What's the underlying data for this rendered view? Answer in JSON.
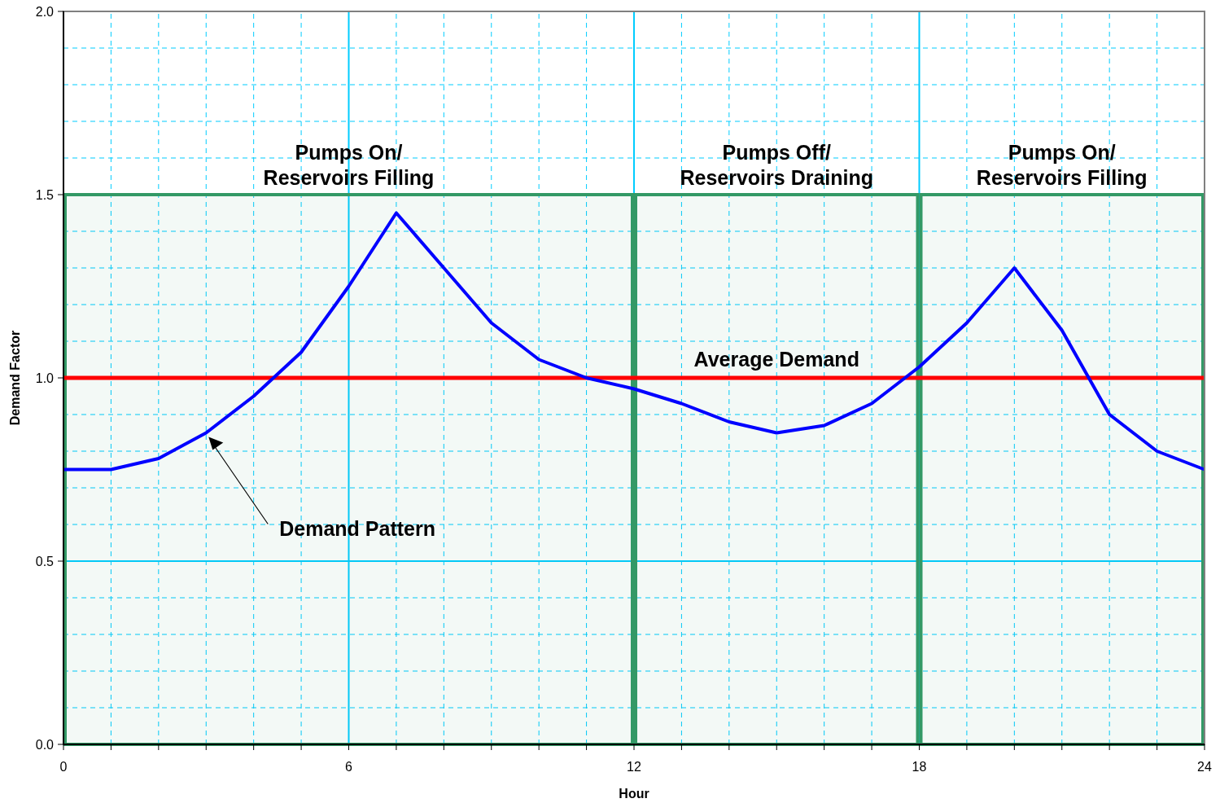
{
  "chart_data": {
    "type": "line",
    "xlabel": "Hour",
    "ylabel": "Demand Factor",
    "x": [
      0,
      1,
      2,
      3,
      4,
      5,
      6,
      7,
      8,
      9,
      10,
      11,
      12,
      13,
      14,
      15,
      16,
      17,
      18,
      19,
      20,
      21,
      22,
      23,
      24
    ],
    "series": [
      {
        "color": "#0000ff",
        "values": [
          0.75,
          0.75,
          0.78,
          0.85,
          0.95,
          1.07,
          1.25,
          1.45,
          1.3,
          1.15,
          1.05,
          1.0,
          0.97,
          0.93,
          0.88,
          0.85,
          0.87,
          0.93,
          1.03,
          1.15,
          1.3,
          1.13,
          0.9,
          0.8,
          0.75
        ]
      }
    ],
    "xlim": [
      0,
      24
    ],
    "xticks": [
      0,
      {
        "value": 1,
        "label": null
      },
      {
        "value": 2,
        "label": null
      },
      {
        "value": 3,
        "label": null
      },
      {
        "value": 4,
        "label": null
      },
      {
        "value": 5,
        "label": null
      },
      6,
      {
        "value": 7,
        "label": null
      },
      {
        "value": 8,
        "label": null
      },
      {
        "value": 9,
        "label": null
      },
      {
        "value": 10,
        "label": null
      },
      {
        "value": 11,
        "label": null
      },
      12,
      {
        "value": 13,
        "label": null
      },
      {
        "value": 14,
        "label": null
      },
      {
        "value": 15,
        "label": null
      },
      {
        "value": 16,
        "label": null
      },
      {
        "value": 17,
        "label": null
      },
      18,
      {
        "value": 19,
        "label": null
      },
      {
        "value": 20,
        "label": null
      },
      {
        "value": 21,
        "label": null
      },
      {
        "value": 22,
        "label": null
      },
      {
        "value": 23,
        "label": null
      },
      24
    ],
    "ylim": [
      0,
      2
    ],
    "yticks": [
      {
        "value": 0,
        "label": "0.0"
      },
      {
        "value": 0.1,
        "label": null
      },
      {
        "value": 0.2,
        "label": null
      },
      {
        "value": 0.3,
        "label": null
      },
      {
        "value": 0.4,
        "label": null
      },
      0.5,
      {
        "value": 0.6,
        "label": null
      },
      {
        "value": 0.7,
        "label": null
      },
      {
        "value": 0.8,
        "label": null
      },
      {
        "value": 0.9,
        "label": null
      },
      {
        "value": 1,
        "label": "1.0"
      },
      {
        "value": 1.1,
        "label": null
      },
      {
        "value": 1.2,
        "label": null
      },
      {
        "value": 1.3,
        "label": null
      },
      {
        "value": 1.4,
        "label": null
      },
      1.5,
      {
        "value": 1.6,
        "label": null
      },
      {
        "value": 1.7,
        "label": null
      },
      {
        "value": 1.8,
        "label": null
      },
      {
        "value": 1.9,
        "label": null
      },
      {
        "value": 2,
        "label": "2.0"
      }
    ],
    "grid": true,
    "marker": "none",
    "line_style": "solid",
    "ref_lines": [
      {
        "axis": "y",
        "value": 1,
        "label": "Average Demand",
        "color": "#ff0000"
      }
    ],
    "bands": [
      {
        "axis": "x",
        "from": 0,
        "to": 12,
        "label": "Pumps On/\nReservoirs Filling",
        "color": "#339966"
      },
      {
        "axis": "x",
        "from": 12,
        "to": 18,
        "label": "Pumps Off/\nReservoirs Draining",
        "color": "#339966"
      },
      {
        "axis": "x",
        "from": 18,
        "to": 24,
        "label": "Pumps On/\nReservoirs Filling",
        "color": "#339966"
      }
    ],
    "annotations": [
      "Demand Pattern"
    ]
  }
}
